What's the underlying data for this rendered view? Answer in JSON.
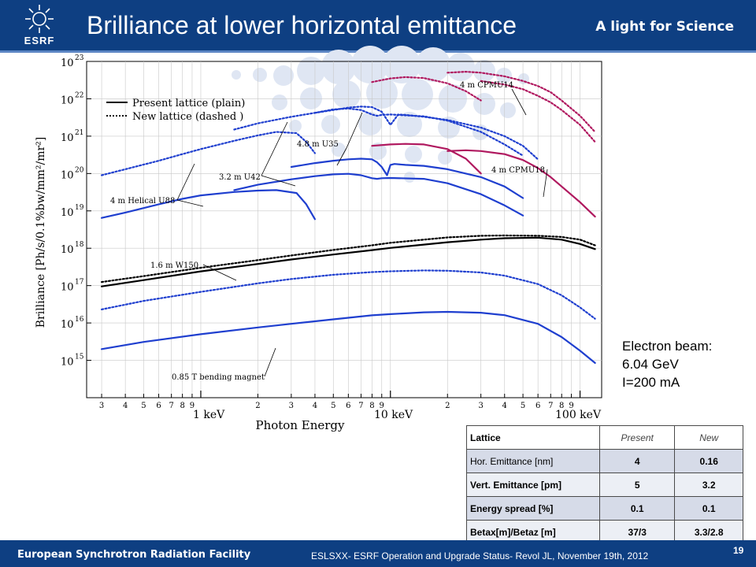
{
  "header": {
    "logo_text": "ESRF",
    "title": "Brilliance at lower horizontal emittance",
    "tagline": "A light for Science"
  },
  "footer": {
    "left": "European Synchrotron Radiation Facility",
    "middle": "ESLSXX- ESRF Operation and Upgrade Status-  Revol JL, November 19th, 2012",
    "page": "19"
  },
  "beam_info": {
    "line1": "Electron beam:",
    "line2": "6.04 GeV",
    "line3": "I=200 mA"
  },
  "lattice_table": {
    "header": [
      "Lattice",
      "Present",
      "New"
    ],
    "rows": [
      [
        "Hor. Emittance [nm]",
        "4",
        "0.16"
      ],
      [
        "Vert. Emittance [pm]",
        "5",
        "3.2"
      ],
      [
        "Energy spread [%]",
        "0.1",
        "0.1"
      ],
      [
        "Betax[m]/Betaz [m]",
        "37/3",
        "3.3/2.8"
      ]
    ]
  },
  "chart_data": {
    "type": "line",
    "xlabel": "Photon Energy",
    "ylabel": "Brilliance [Ph/s/0.1%bw/mm²/mr²]",
    "xscale": "log",
    "yscale": "log",
    "xlim": [
      0.25,
      130
    ],
    "ylim": [
      100000000000000.0,
      1e+23
    ],
    "x_major_ticks": [
      "1 keV",
      "10 keV",
      "100 keV"
    ],
    "x_minor_digits": [
      "3",
      "4",
      "5",
      "6",
      "7",
      "8",
      "9",
      "2",
      "3",
      "4",
      "5",
      "6",
      "7",
      "8",
      "9",
      "2",
      "3",
      "4",
      "5",
      "6",
      "7",
      "8",
      "9"
    ],
    "y_tick_exponents": [
      "15",
      "16",
      "17",
      "18",
      "19",
      "20",
      "21",
      "22",
      "23"
    ],
    "legend": {
      "placement": "top-left",
      "entries": [
        "Present lattice (plain)",
        "New lattice (dashed )"
      ]
    },
    "annotations": [
      "4 m CPMU14",
      "4.8 m U35",
      "3.2 m U42",
      "4 m Helical U88",
      "4 m CPMU18",
      "1.6 m W150",
      "0.85 T bending magnet"
    ],
    "colors": {
      "undulator": "#1f3fcf",
      "cpmu": "#b0195f",
      "wiggler": "#000000",
      "frame": "#000000"
    },
    "series": [
      {
        "name": "0.85 T bending magnet",
        "lattice": "present",
        "color": "#1f3fcf",
        "x": [
          0.3,
          0.5,
          1,
          2,
          3,
          5,
          8,
          10,
          15,
          20,
          30,
          40,
          60,
          80,
          100,
          120
        ],
        "y": [
          2000000000000000.0,
          3100000000000000.0,
          5000000000000000.0,
          7600000000000000.0,
          9500000000000000.0,
          1.25e+16,
          1.6e+16,
          1.72e+16,
          1.93e+16,
          1.98e+16,
          1.88e+16,
          1.62e+16,
          9500000000000000.0,
          4200000000000000.0,
          1800000000000000.0,
          850000000000000.0
        ]
      },
      {
        "name": "0.85 T bending magnet",
        "lattice": "new",
        "color": "#1f3fcf",
        "x": [
          0.3,
          0.5,
          1,
          2,
          3,
          5,
          8,
          10,
          15,
          20,
          30,
          40,
          60,
          80,
          100,
          120
        ],
        "y": [
          2.3e+16,
          3.9e+16,
          6.8e+16,
          1.15e+17,
          1.5e+17,
          1.95e+17,
          2.3e+17,
          2.42e+17,
          2.55e+17,
          2.5e+17,
          2.25e+17,
          1.85e+17,
          1.1e+17,
          5.5e+16,
          2.6e+16,
          1.3e+16
        ]
      },
      {
        "name": "1.6 m W150",
        "lattice": "present",
        "color": "#000000",
        "x": [
          0.3,
          0.5,
          1,
          2,
          3,
          5,
          8,
          10,
          15,
          20,
          30,
          40,
          60,
          80,
          100,
          120
        ],
        "y": [
          9.5e+16,
          1.4e+17,
          2.4e+17,
          3.8e+17,
          5e+17,
          6.8e+17,
          8.9e+17,
          1.02e+18,
          1.25e+18,
          1.45e+18,
          1.7e+18,
          1.85e+18,
          1.92e+18,
          1.7e+18,
          1.3e+18,
          9.5e+17
        ]
      },
      {
        "name": "1.6 m W150",
        "lattice": "new",
        "color": "#000000",
        "x": [
          0.3,
          0.5,
          1,
          2,
          3,
          5,
          8,
          10,
          15,
          20,
          30,
          40,
          60,
          80,
          100,
          120
        ],
        "y": [
          1.25e+17,
          1.8e+17,
          3e+17,
          4.8e+17,
          6.4e+17,
          9e+17,
          1.2e+18,
          1.4e+18,
          1.7e+18,
          1.95e+18,
          2.15e+18,
          2.2e+18,
          2.15e+18,
          2e+18,
          1.7e+18,
          1.2e+18
        ]
      },
      {
        "name": "4 m Helical U88",
        "lattice": "present",
        "color": "#1f3fcf",
        "x": [
          0.3,
          0.4,
          0.6,
          0.8,
          1,
          1.5,
          2,
          2.5,
          3.2,
          3.6,
          4.0
        ],
        "y": [
          6.5e+18,
          9e+18,
          1.5e+19,
          2.1e+19,
          2.6e+19,
          3.2e+19,
          3.5e+19,
          3.6e+19,
          3e+19,
          1.5e+19,
          6e+18
        ]
      },
      {
        "name": "4 m Helical U88",
        "lattice": "new",
        "color": "#1f3fcf",
        "x": [
          0.3,
          0.4,
          0.6,
          0.8,
          1,
          1.5,
          2,
          2.5,
          3.2,
          3.6,
          4.0
        ],
        "y": [
          9e+19,
          1.3e+20,
          2.2e+20,
          3.3e+20,
          4.5e+20,
          7.5e+20,
          1.05e+21,
          1.3e+21,
          1.2e+21,
          7e+20,
          3.5e+20
        ]
      },
      {
        "name": "3.2 m U42",
        "lattice": "present",
        "color": "#1f3fcf",
        "x": [
          1.5,
          2,
          3,
          4,
          5,
          6,
          7,
          8,
          8.5,
          9,
          10,
          15,
          20,
          30,
          40,
          50
        ],
        "y": [
          3.6e+19,
          5e+19,
          7e+19,
          8.5e+19,
          9.5e+19,
          9.8e+19,
          9e+19,
          7.5e+19,
          7.2e+19,
          7.5e+19,
          7.6e+19,
          7.2e+19,
          5.5e+19,
          2.8e+19,
          1.4e+19,
          7.5e+18
        ]
      },
      {
        "name": "3.2 m U42",
        "lattice": "new",
        "color": "#1f3fcf",
        "x": [
          1.5,
          2,
          3,
          4,
          5,
          6,
          7,
          8,
          8.5,
          9,
          10,
          15,
          20,
          30,
          40,
          50
        ],
        "y": [
          1.5e+21,
          2.2e+21,
          3.3e+21,
          4.2e+21,
          5.2e+21,
          5.5e+21,
          5e+21,
          3.8e+21,
          3.5e+21,
          3.7e+21,
          3.8e+21,
          3.4e+21,
          2.6e+21,
          1.3e+21,
          6e+20,
          3e+20
        ]
      },
      {
        "name": "4.8 m U35",
        "lattice": "present",
        "color": "#1f3fcf",
        "x": [
          3,
          4,
          5,
          6,
          7,
          8,
          8.5,
          9,
          9.6,
          10,
          10.5,
          12,
          15,
          20,
          30,
          40,
          50
        ],
        "y": [
          1.5e+20,
          1.9e+20,
          2.2e+20,
          2.4e+20,
          2.5e+20,
          2.4e+20,
          2e+20,
          1.5e+20,
          9e+19,
          1.7e+20,
          1.8e+20,
          1.7e+20,
          1.6e+20,
          1.3e+20,
          8e+19,
          4.5e+19,
          2.2e+19
        ]
      },
      {
        "name": "4.8 m U35",
        "lattice": "new",
        "color": "#1f3fcf",
        "x": [
          4,
          5,
          6,
          7,
          8,
          9,
          10,
          11,
          12,
          15,
          20,
          30,
          40,
          50,
          60
        ],
        "y": [
          4.2e+21,
          5e+21,
          5.8e+21,
          6.2e+21,
          6e+21,
          4.5e+21,
          2e+21,
          3.8e+21,
          3.7e+21,
          3.3e+21,
          2.7e+21,
          1.7e+21,
          1e+21,
          5.5e+20,
          2.4e+20
        ]
      },
      {
        "name": "4 m CPMU18",
        "lattice": "present",
        "color": "#b0195f",
        "x": [
          8,
          10,
          12,
          15,
          20,
          25,
          30
        ],
        "y": [
          5.5e+20,
          6e+20,
          6.2e+20,
          6e+20,
          4.5e+20,
          2.5e+20,
          1e+20
        ]
      },
      {
        "name": "4 m CPMU18",
        "lattice": "present",
        "color": "#b0195f",
        "x": [
          20,
          25,
          30,
          40,
          50,
          60,
          70,
          80,
          100,
          120
        ],
        "y": [
          4e+20,
          4.2e+20,
          4e+20,
          3.3e+20,
          2.3e+20,
          1.4e+20,
          8e+19,
          4.5e+19,
          1.7e+19,
          7e+18
        ]
      },
      {
        "name": "4 m CPMU14",
        "lattice": "new",
        "color": "#b0195f",
        "x": [
          8,
          10,
          12,
          15,
          20,
          25,
          30
        ],
        "y": [
          2.8e+22,
          3.5e+22,
          3.8e+22,
          3.6e+22,
          2.6e+22,
          1.6e+22,
          9e+21
        ]
      },
      {
        "name": "4 m CPMU14",
        "lattice": "new",
        "color": "#b0195f",
        "x": [
          20,
          25,
          30,
          40,
          50,
          60,
          70,
          80,
          100,
          120
        ],
        "y": [
          5e+22,
          5.3e+22,
          5e+22,
          4e+22,
          3e+22,
          2.2e+22,
          1.5e+22,
          9e+21,
          3.5e+21,
          1.3e+21
        ]
      },
      {
        "name": "4 m CPMU14",
        "lattice": "new",
        "color": "#b0195f",
        "x": [
          30,
          40,
          50,
          60,
          70,
          80,
          100,
          120
        ],
        "y": [
          3e+22,
          2.4e+22,
          1.8e+22,
          1.2e+22,
          8e+21,
          5e+21,
          2e+21,
          7e+20
        ]
      }
    ]
  }
}
